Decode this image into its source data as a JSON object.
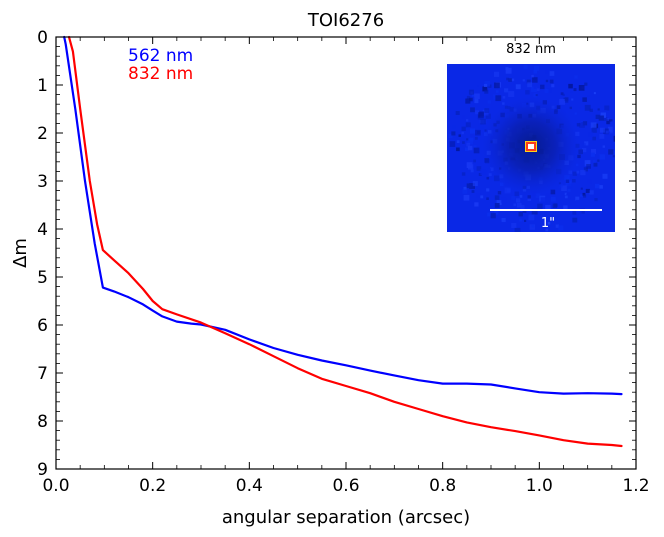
{
  "chart_data": {
    "type": "line",
    "title": "TOI6276",
    "xlabel": "angular separation (arcsec)",
    "ylabel": "Δm",
    "xlim": [
      0.0,
      1.2
    ],
    "ylim": [
      9,
      0
    ],
    "y_inverted": true,
    "x_ticks": [
      "0.0",
      "0.2",
      "0.4",
      "0.6",
      "0.8",
      "1.0",
      "1.2"
    ],
    "y_ticks": [
      "0",
      "1",
      "2",
      "3",
      "4",
      "5",
      "6",
      "7",
      "8",
      "9"
    ],
    "grid": false,
    "legend_placement": "top-left",
    "series": [
      {
        "name": "562 nm",
        "color": "#0000ff",
        "x": [
          0.017,
          0.02,
          0.04,
          0.06,
          0.08,
          0.097,
          0.12,
          0.15,
          0.18,
          0.2,
          0.22,
          0.25,
          0.28,
          0.3,
          0.35,
          0.4,
          0.45,
          0.5,
          0.55,
          0.6,
          0.65,
          0.7,
          0.75,
          0.8,
          0.85,
          0.9,
          0.95,
          1.0,
          1.05,
          1.1,
          1.15,
          1.17
        ],
        "y": [
          0.0,
          0.15,
          1.5,
          3.0,
          4.3,
          5.22,
          5.3,
          5.42,
          5.57,
          5.7,
          5.82,
          5.93,
          5.97,
          5.99,
          6.1,
          6.3,
          6.48,
          6.62,
          6.74,
          6.84,
          6.95,
          7.05,
          7.15,
          7.22,
          7.22,
          7.24,
          7.32,
          7.4,
          7.43,
          7.42,
          7.43,
          7.44
        ]
      },
      {
        "name": "832 nm",
        "color": "#ff0000",
        "x": [
          0.027,
          0.035,
          0.05,
          0.07,
          0.085,
          0.097,
          0.12,
          0.15,
          0.18,
          0.2,
          0.22,
          0.25,
          0.3,
          0.35,
          0.4,
          0.45,
          0.5,
          0.55,
          0.6,
          0.65,
          0.7,
          0.75,
          0.8,
          0.85,
          0.9,
          0.95,
          1.0,
          1.05,
          1.1,
          1.15,
          1.17
        ],
        "y": [
          0.0,
          0.3,
          1.5,
          3.0,
          3.9,
          4.44,
          4.65,
          4.92,
          5.25,
          5.5,
          5.67,
          5.78,
          5.95,
          6.17,
          6.4,
          6.65,
          6.9,
          7.12,
          7.27,
          7.42,
          7.6,
          7.75,
          7.9,
          8.03,
          8.13,
          8.21,
          8.3,
          8.4,
          8.47,
          8.5,
          8.52
        ]
      }
    ],
    "inset": {
      "title": "832 nm",
      "scale_label": "1\"",
      "background_color": "#0a28e6"
    }
  }
}
